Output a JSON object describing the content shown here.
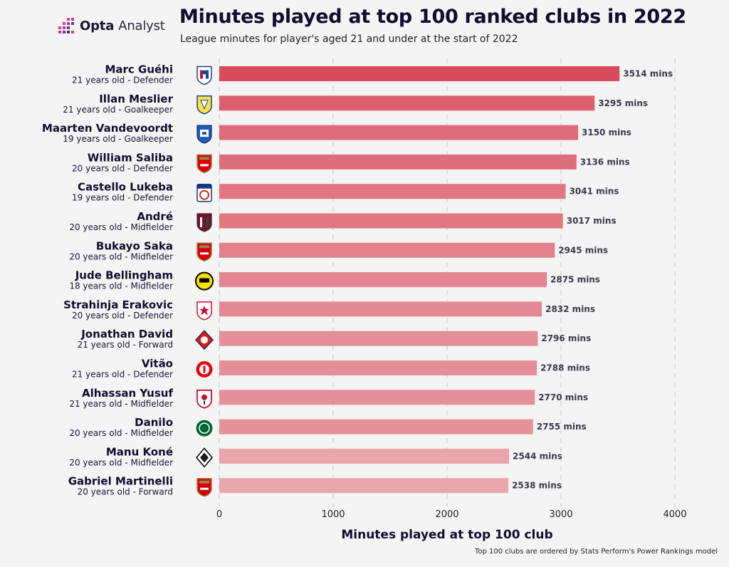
{
  "brand": {
    "name": "Opta",
    "name_suffix": "Analyst"
  },
  "header": {
    "title": "Minutes played at top 100 ranked clubs in 2022",
    "subtitle": "League minutes for player's aged 21 and under at the start of 2022"
  },
  "footnote": "Top 100 clubs are ordered by Stats Perform's Power Rankings model",
  "colors": {
    "bar_dark": "#d94a5b",
    "bar_light": "#e8a6ad",
    "grid": "#d0d0d0"
  },
  "chart_data": {
    "type": "bar",
    "orientation": "horizontal",
    "title": "Minutes played at top 100 ranked clubs in 2022",
    "subtitle": "League minutes for player's aged 21 and under at the start of 2022",
    "xlabel": "Minutes played at top 100 club",
    "ylabel": "",
    "xlim": [
      0,
      4000
    ],
    "xticks": [
      0,
      1000,
      2000,
      3000,
      4000
    ],
    "grid": "vertical dashed",
    "value_suffix": " mins",
    "categories": [
      {
        "name": "Marc Guéhi",
        "meta": "21 years old - Defender",
        "club_icon": "crystal-palace-crest-icon"
      },
      {
        "name": "Illan Meslier",
        "meta": "21 years old - Goalkeeper",
        "club_icon": "leeds-crest-icon"
      },
      {
        "name": "Maarten Vandevoordt",
        "meta": "19 years old - Goalkeeper",
        "club_icon": "genk-crest-icon"
      },
      {
        "name": "William Saliba",
        "meta": "20 years old - Defender",
        "club_icon": "arsenal-crest-icon"
      },
      {
        "name": "Castello Lukeba",
        "meta": "19 years old - Defender",
        "club_icon": "lyon-crest-icon"
      },
      {
        "name": "André",
        "meta": "20 years old - Midfielder",
        "club_icon": "fluminense-crest-icon"
      },
      {
        "name": "Bukayo Saka",
        "meta": "20 years old - Midfielder",
        "club_icon": "arsenal-crest-icon"
      },
      {
        "name": "Jude Bellingham",
        "meta": "18 years old - Midfielder",
        "club_icon": "dortmund-crest-icon"
      },
      {
        "name": "Strahinja Erakovic",
        "meta": "20 years old - Defender",
        "club_icon": "red-star-crest-icon"
      },
      {
        "name": "Jonathan David",
        "meta": "21 years old - Forward",
        "club_icon": "lille-crest-icon"
      },
      {
        "name": "Vitão",
        "meta": "21 years old - Defender",
        "club_icon": "internacional-crest-icon"
      },
      {
        "name": "Alhassan Yusuf",
        "meta": "21 years old - Midfielder",
        "club_icon": "antwerp-crest-icon"
      },
      {
        "name": "Danilo",
        "meta": "20 years old - Midfielder",
        "club_icon": "palmeiras-crest-icon"
      },
      {
        "name": "Manu Koné",
        "meta": "20 years old - Midfielder",
        "club_icon": "gladbach-crest-icon"
      },
      {
        "name": "Gabriel Martinelli",
        "meta": "20 years old - Forward",
        "club_icon": "arsenal-crest-icon"
      }
    ],
    "values": [
      3514,
      3295,
      3150,
      3136,
      3041,
      3017,
      2945,
      2875,
      2832,
      2796,
      2788,
      2770,
      2755,
      2544,
      2538
    ]
  }
}
